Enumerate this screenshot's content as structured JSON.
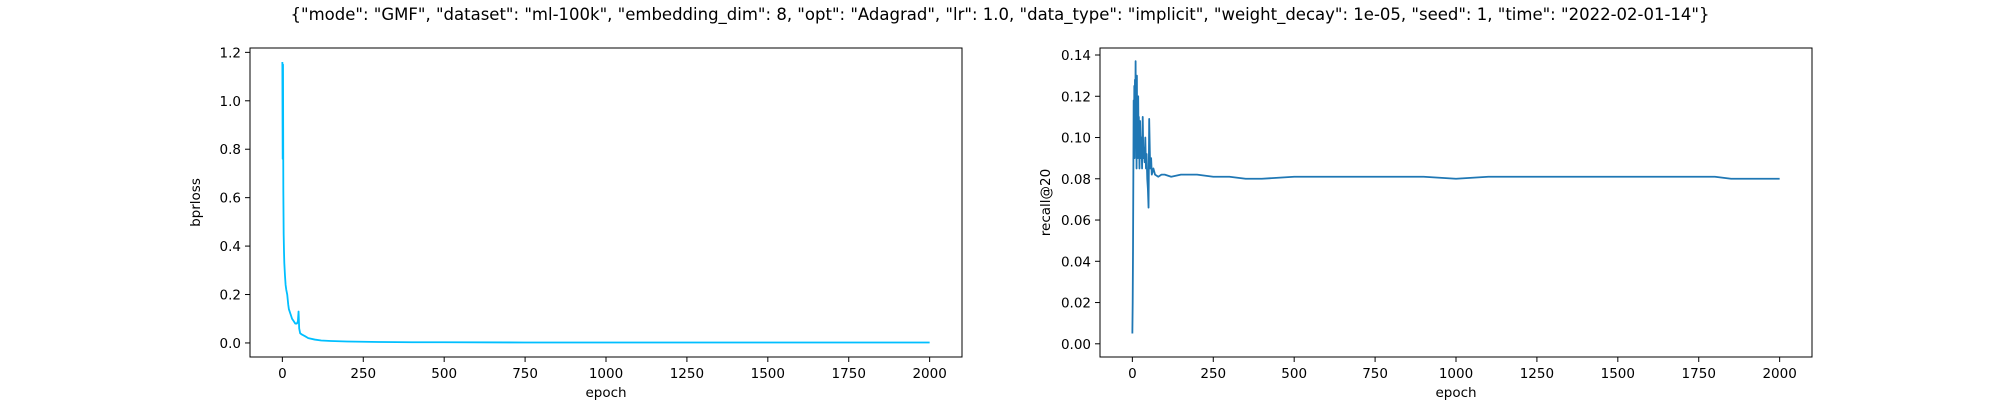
{
  "figure": {
    "suptitle": "{\"mode\": \"GMF\", \"dataset\": \"ml-100k\", \"embedding_dim\": 8, \"opt\": \"Adagrad\", \"lr\": 1.0, \"data_type\": \"implicit\", \"weight_decay\": 1e-05, \"seed\": 1, \"time\": \"2022-02-01-14\"}"
  },
  "chart_data": [
    {
      "type": "line",
      "xlabel": "epoch",
      "ylabel": "bprloss",
      "xlim": [
        -100,
        2100
      ],
      "ylim": [
        -0.058,
        1.218
      ],
      "xticks": [
        0,
        250,
        500,
        750,
        1000,
        1250,
        1500,
        1750,
        2000
      ],
      "yticks": [
        0.0,
        0.2,
        0.4,
        0.6,
        0.8,
        1.0,
        1.2
      ],
      "ytick_labels": [
        "0.0",
        "0.2",
        "0.4",
        "0.6",
        "0.8",
        "1.0",
        "1.2"
      ],
      "grid": false,
      "color": "#00bfff",
      "series": [
        {
          "x": [
            0,
            1,
            2,
            3,
            4,
            5,
            6,
            8,
            10,
            12,
            15,
            18,
            20,
            25,
            30,
            35,
            40,
            45,
            48,
            50,
            52,
            55,
            60,
            70,
            80,
            100,
            120,
            150,
            200,
            250,
            300,
            400,
            500,
            750,
            1000,
            1250,
            1500,
            1750,
            2000
          ],
          "y": [
            1.16,
            0.76,
            1.15,
            0.63,
            0.45,
            0.38,
            0.33,
            0.28,
            0.24,
            0.22,
            0.2,
            0.16,
            0.14,
            0.12,
            0.1,
            0.09,
            0.08,
            0.08,
            0.09,
            0.13,
            0.06,
            0.04,
            0.035,
            0.028,
            0.02,
            0.014,
            0.01,
            0.008,
            0.006,
            0.005,
            0.004,
            0.003,
            0.003,
            0.002,
            0.002,
            0.002,
            0.002,
            0.002,
            0.002
          ]
        }
      ]
    },
    {
      "type": "line",
      "xlabel": "epoch",
      "ylabel": "recall@20",
      "xlim": [
        -100,
        2100
      ],
      "ylim": [
        -0.0064,
        0.1434
      ],
      "xticks": [
        0,
        250,
        500,
        750,
        1000,
        1250,
        1500,
        1750,
        2000
      ],
      "yticks": [
        0.0,
        0.02,
        0.04,
        0.06,
        0.08,
        0.1,
        0.12,
        0.14
      ],
      "ytick_labels": [
        "0.00",
        "0.02",
        "0.04",
        "0.06",
        "0.08",
        "0.10",
        "0.12",
        "0.14"
      ],
      "grid": false,
      "color": "#1f77b4",
      "series": [
        {
          "x": [
            0,
            1,
            2,
            3,
            4,
            5,
            6,
            7,
            8,
            9,
            10,
            11,
            12,
            13,
            14,
            15,
            16,
            17,
            18,
            19,
            20,
            22,
            24,
            26,
            28,
            30,
            32,
            34,
            36,
            38,
            40,
            42,
            44,
            46,
            48,
            50,
            52,
            55,
            58,
            60,
            65,
            70,
            80,
            90,
            100,
            120,
            150,
            200,
            250,
            300,
            350,
            400,
            500,
            600,
            700,
            800,
            900,
            1000,
            1100,
            1200,
            1300,
            1400,
            1500,
            1600,
            1700,
            1800,
            1850,
            1900,
            2000
          ],
          "y": [
            0.005,
            0.02,
            0.045,
            0.08,
            0.118,
            0.1,
            0.125,
            0.09,
            0.128,
            0.11,
            0.137,
            0.1,
            0.12,
            0.085,
            0.13,
            0.095,
            0.11,
            0.09,
            0.12,
            0.1,
            0.11,
            0.085,
            0.108,
            0.09,
            0.1,
            0.085,
            0.11,
            0.09,
            0.095,
            0.088,
            0.1,
            0.085,
            0.092,
            0.08,
            0.075,
            0.066,
            0.109,
            0.085,
            0.09,
            0.082,
            0.085,
            0.082,
            0.081,
            0.082,
            0.082,
            0.081,
            0.082,
            0.082,
            0.081,
            0.081,
            0.08,
            0.08,
            0.081,
            0.081,
            0.081,
            0.081,
            0.081,
            0.08,
            0.081,
            0.081,
            0.081,
            0.081,
            0.081,
            0.081,
            0.081,
            0.081,
            0.08,
            0.08,
            0.08
          ]
        }
      ]
    }
  ]
}
